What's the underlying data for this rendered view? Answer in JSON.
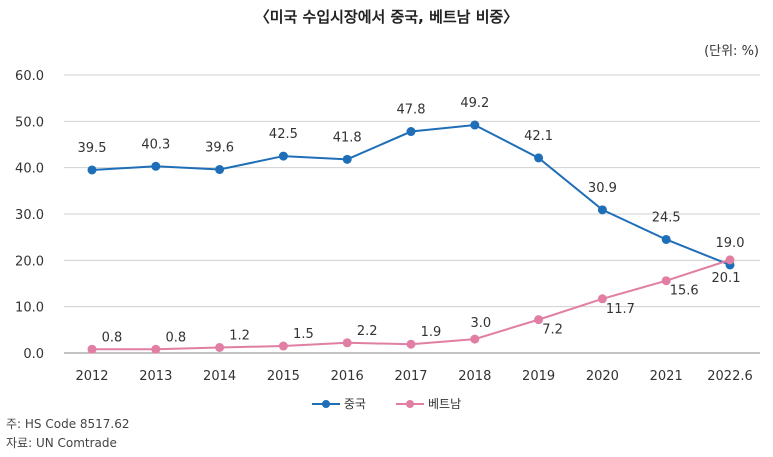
{
  "chart_data": {
    "type": "line",
    "title": "〈미국 수입시장에서 중국, 베트남 비중〉",
    "unit": "(단위: %)",
    "categories": [
      "2012",
      "2013",
      "2014",
      "2015",
      "2016",
      "2017",
      "2018",
      "2019",
      "2020",
      "2021",
      "2022.6"
    ],
    "ylim": [
      0,
      60
    ],
    "yticks": [
      "0.0",
      "10.0",
      "20.0",
      "30.0",
      "40.0",
      "50.0",
      "60.0"
    ],
    "grid": true,
    "legend_position": "bottom",
    "series": [
      {
        "name": "중국",
        "color": "#1f6eb8",
        "values": [
          39.5,
          40.3,
          39.6,
          42.5,
          41.8,
          47.8,
          49.2,
          42.1,
          30.9,
          24.5,
          19.0
        ],
        "labels": [
          "39.5",
          "40.3",
          "39.6",
          "42.5",
          "41.8",
          "47.8",
          "49.2",
          "42.1",
          "30.9",
          "24.5",
          "19.0"
        ]
      },
      {
        "name": "베트남",
        "color": "#e07fa3",
        "values": [
          0.8,
          0.8,
          1.2,
          1.5,
          2.2,
          1.9,
          3.0,
          7.2,
          11.7,
          15.6,
          20.1
        ],
        "labels": [
          "0.8",
          "0.8",
          "1.2",
          "1.5",
          "2.2",
          "1.9",
          "3.0",
          "7.2",
          "11.7",
          "15.6",
          "20.1"
        ]
      }
    ]
  },
  "notes": {
    "hs_code": "주: HS Code 8517.62",
    "source": "자료: UN Comtrade"
  }
}
